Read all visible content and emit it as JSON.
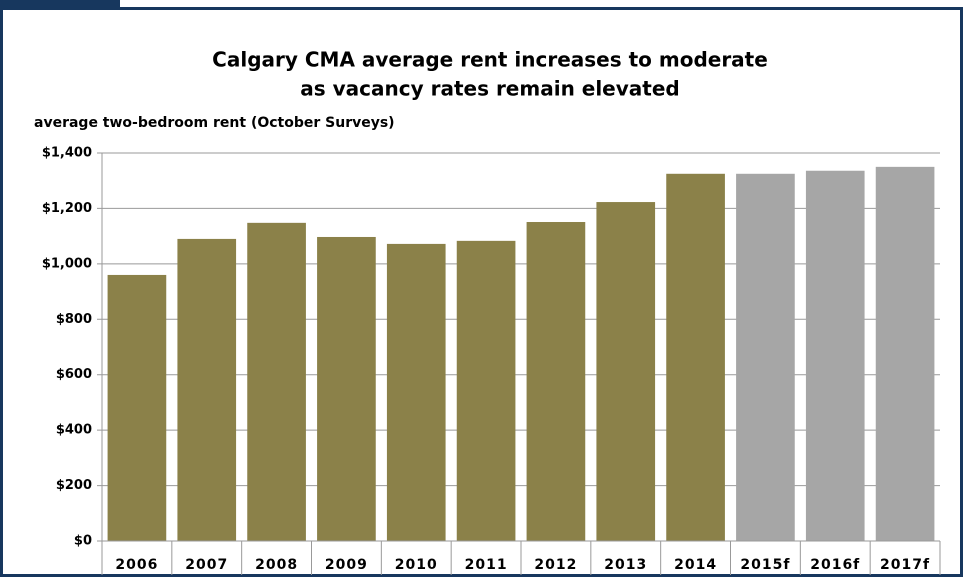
{
  "chart_data": {
    "type": "bar",
    "title": [
      "Calgary CMA average rent increases to moderate",
      "as vacancy rates remain elevated"
    ],
    "y_label": "average two-bedroom rent (October Surveys)",
    "categories": [
      "2006",
      "2007",
      "2008",
      "2009",
      "2010",
      "2011",
      "2012",
      "2013",
      "2014",
      "2015f",
      "2016f",
      "2017f"
    ],
    "values": [
      960,
      1090,
      1148,
      1097,
      1072,
      1083,
      1151,
      1223,
      1325,
      1325,
      1336,
      1350
    ],
    "colors": [
      "#8b8149",
      "#8b8149",
      "#8b8149",
      "#8b8149",
      "#8b8149",
      "#8b8149",
      "#8b8149",
      "#8b8149",
      "#8b8149",
      "#a6a6a6",
      "#a6a6a6",
      "#a6a6a6"
    ],
    "ylim": [
      0,
      1400
    ],
    "yticks": [
      {
        "value": 0,
        "label": "$0"
      },
      {
        "value": 200,
        "label": "$200"
      },
      {
        "value": 400,
        "label": "$400"
      },
      {
        "value": 600,
        "label": "$600"
      },
      {
        "value": 800,
        "label": "$800"
      },
      {
        "value": 1000,
        "label": "$1,000"
      },
      {
        "value": 1200,
        "label": "$1,200"
      },
      {
        "value": 1400,
        "label": "$1,400"
      }
    ],
    "grid": true
  }
}
